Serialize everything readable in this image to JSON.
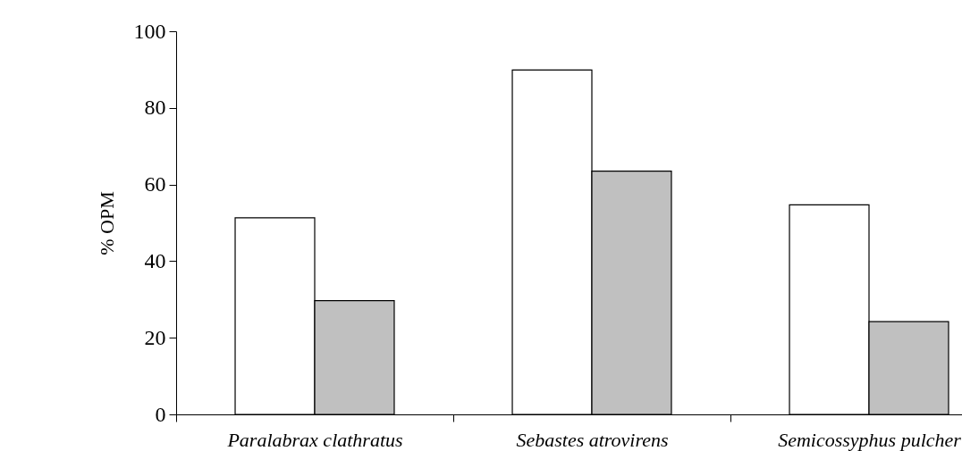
{
  "chart_data": {
    "type": "bar",
    "ylabel": "% OPM",
    "categories": [
      "Paralabrax clathratus",
      "Sebastes atrovirens",
      "Semicossyphus pulcher"
    ],
    "series": [
      {
        "color": "#ffffff",
        "values": [
          51.3,
          89.9,
          54.7
        ]
      },
      {
        "color": "#c0c0c0",
        "values": [
          29.7,
          63.5,
          24.2
        ]
      }
    ],
    "ylim": [
      0,
      100
    ],
    "yticks": [
      0,
      20,
      40,
      60,
      80,
      100
    ]
  }
}
